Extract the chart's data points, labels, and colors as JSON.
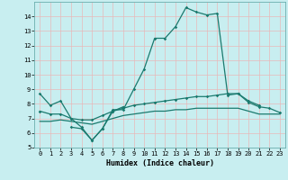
{
  "title": "",
  "xlabel": "Humidex (Indice chaleur)",
  "xlim": [
    -0.5,
    23.5
  ],
  "ylim": [
    5,
    15
  ],
  "yticks": [
    5,
    6,
    7,
    8,
    9,
    10,
    11,
    12,
    13,
    14
  ],
  "xticks": [
    0,
    1,
    2,
    3,
    4,
    5,
    6,
    7,
    8,
    9,
    10,
    11,
    12,
    13,
    14,
    15,
    16,
    17,
    18,
    19,
    20,
    21,
    22,
    23
  ],
  "background_color": "#c8eef0",
  "grid_color": "#e8b8b8",
  "line_color": "#1a7a6e",
  "line1_x": [
    0,
    1,
    2,
    3,
    4,
    5,
    6,
    7,
    8,
    9,
    10,
    11,
    12,
    13,
    14,
    15,
    16,
    17,
    18,
    19,
    20,
    21
  ],
  "line1_y": [
    8.7,
    7.9,
    8.2,
    7.0,
    6.4,
    5.5,
    6.3,
    7.6,
    7.6,
    9.0,
    10.4,
    12.5,
    12.5,
    13.3,
    14.6,
    14.3,
    14.1,
    14.2,
    8.6,
    8.7,
    8.2,
    7.9
  ],
  "line2_x": [
    3,
    4,
    5,
    6,
    7,
    8
  ],
  "line2_y": [
    6.4,
    6.3,
    5.5,
    6.3,
    7.5,
    7.8
  ],
  "line3_x": [
    0,
    1,
    2,
    3,
    4,
    5,
    6,
    7,
    8,
    9,
    10,
    11,
    12,
    13,
    14,
    15,
    16,
    17,
    18,
    19,
    20,
    21,
    22,
    23
  ],
  "line3_y": [
    7.5,
    7.3,
    7.3,
    7.0,
    6.9,
    6.9,
    7.2,
    7.5,
    7.7,
    7.9,
    8.0,
    8.1,
    8.2,
    8.3,
    8.4,
    8.5,
    8.5,
    8.6,
    8.7,
    8.7,
    8.1,
    7.8,
    7.7,
    7.4
  ],
  "line4_x": [
    0,
    1,
    2,
    3,
    4,
    5,
    6,
    7,
    8,
    9,
    10,
    11,
    12,
    13,
    14,
    15,
    16,
    17,
    18,
    19,
    20,
    21,
    22,
    23
  ],
  "line4_y": [
    6.8,
    6.8,
    6.9,
    6.8,
    6.7,
    6.6,
    6.8,
    7.0,
    7.2,
    7.3,
    7.4,
    7.5,
    7.5,
    7.6,
    7.6,
    7.7,
    7.7,
    7.7,
    7.7,
    7.7,
    7.5,
    7.3,
    7.3,
    7.3
  ]
}
